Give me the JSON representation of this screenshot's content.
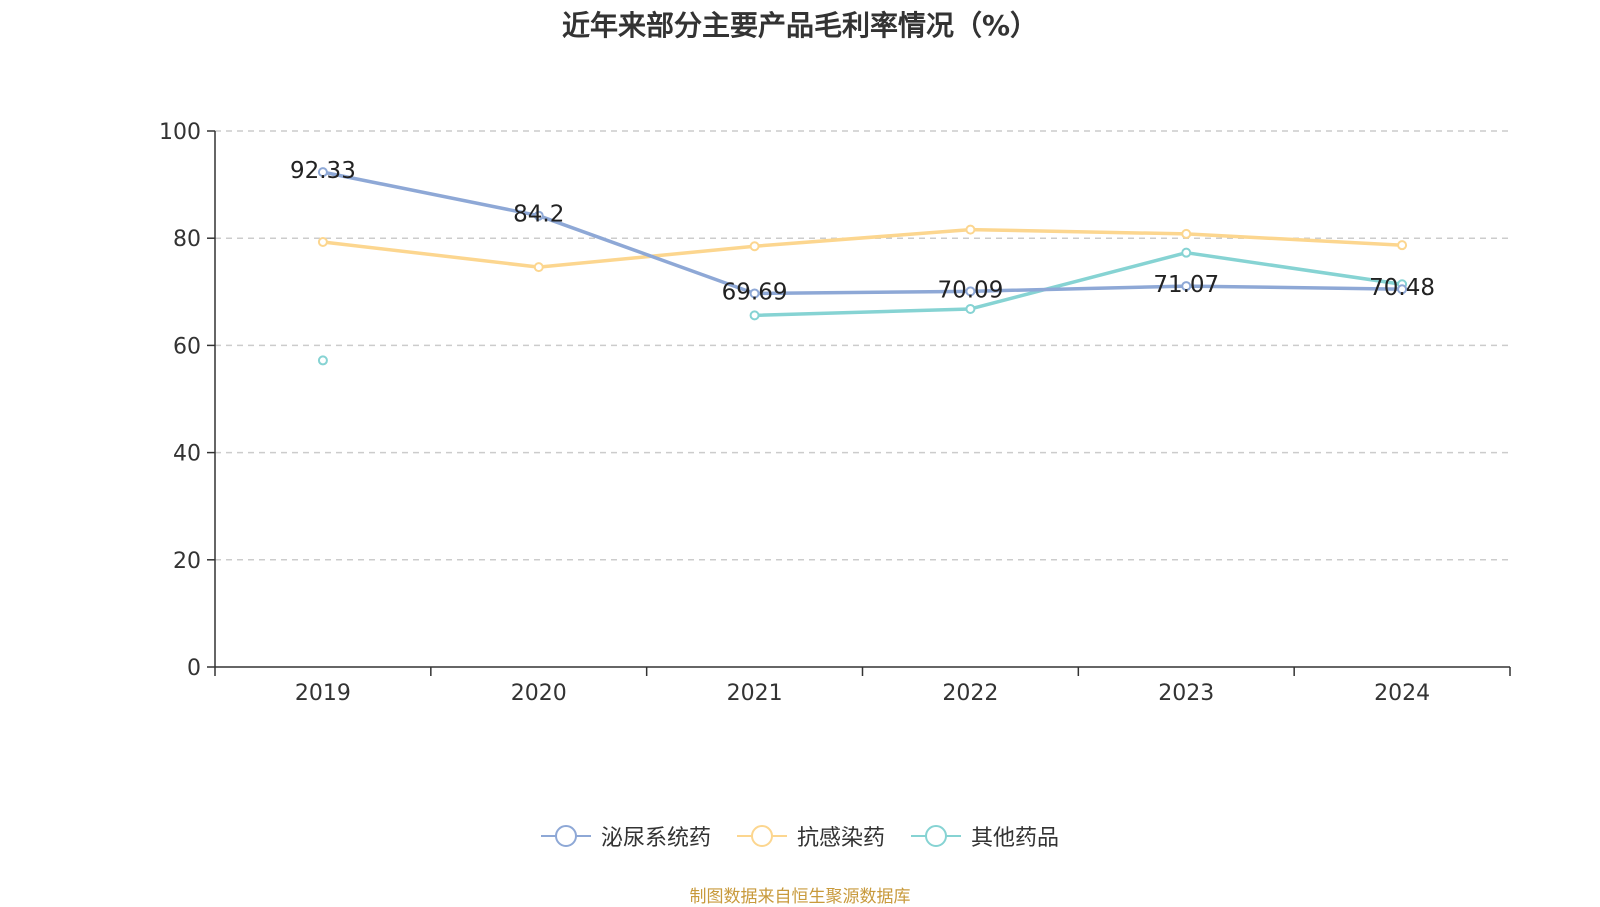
{
  "chart_data": {
    "type": "line",
    "title": "近年来部分主要产品毛利率情况（%）",
    "categories": [
      "2019",
      "2020",
      "2021",
      "2022",
      "2023",
      "2024"
    ],
    "ylim": [
      0,
      100
    ],
    "yticks": [
      0,
      20,
      40,
      60,
      80,
      100
    ],
    "grid": true,
    "legend_position": "bottom",
    "series": [
      {
        "name": "泌尿系统药",
        "color": "#8ea8d6",
        "values": [
          92.33,
          84.2,
          69.69,
          70.09,
          71.07,
          70.48
        ],
        "labels": [
          "92.33",
          "84.2",
          "69.69",
          "70.09",
          "71.07",
          "70.48"
        ]
      },
      {
        "name": "抗感染药",
        "color": "#fcd68f",
        "values": [
          79.3,
          74.6,
          78.5,
          81.6,
          80.8,
          78.7
        ]
      },
      {
        "name": "其他药品",
        "color": "#86d3d3",
        "values": [
          57.2,
          null,
          65.6,
          66.8,
          77.3,
          71.4
        ]
      }
    ]
  },
  "source": "制图数据来自恒生聚源数据库"
}
